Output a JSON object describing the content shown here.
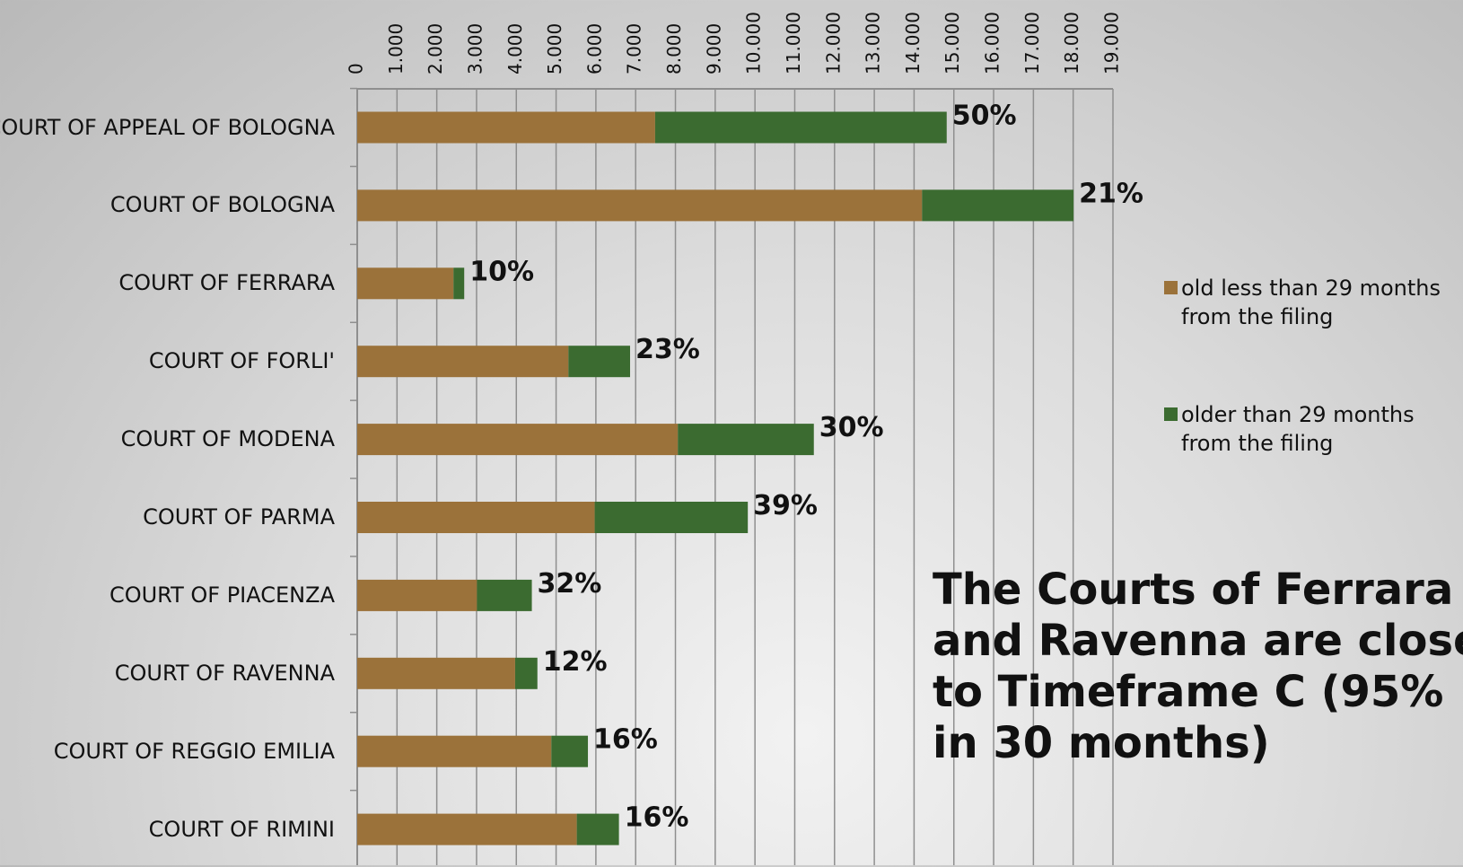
{
  "chart_data": {
    "type": "stacked-hbar",
    "categories": [
      "COURT OF APPEAL OF BOLOGNA",
      "COURT OF BOLOGNA",
      "COURT OF FERRARA",
      "COURT OF FORLI'",
      "COURT OF MODENA",
      "COURT OF PARMA",
      "COURT OF PIACENZA",
      "COURT OF RAVENNA",
      "COURT OF REGGIO EMILIA",
      "COURT OF RIMINI"
    ],
    "series": [
      {
        "name": "old less than 29 months from the filing",
        "color": "#9b723a",
        "values": [
          7490,
          14200,
          2420,
          5310,
          8060,
          5970,
          3010,
          3970,
          4880,
          5520
        ]
      },
      {
        "name": "older than 29 months from the filing",
        "color": "#3b6b30",
        "values": [
          7330,
          3810,
          270,
          1550,
          3420,
          3850,
          1380,
          560,
          920,
          1060
        ]
      }
    ],
    "bar_annotations": [
      "50%",
      "21%",
      "10%",
      "23%",
      "30%",
      "39%",
      "32%",
      "12%",
      "16%",
      "16%"
    ],
    "xlim": [
      0,
      19000
    ],
    "xticks": [
      0,
      {
        "value": 1000,
        "label": "1.000"
      },
      {
        "value": 2000,
        "label": "2.000"
      },
      {
        "value": 3000,
        "label": "3.000"
      },
      {
        "value": 4000,
        "label": "4.000"
      },
      {
        "value": 5000,
        "label": "5.000"
      },
      {
        "value": 6000,
        "label": "6.000"
      },
      {
        "value": 7000,
        "label": "7.000"
      },
      {
        "value": 8000,
        "label": "8.000"
      },
      {
        "value": 9000,
        "label": "9.000"
      },
      {
        "value": 10000,
        "label": "10.000"
      },
      {
        "value": 11000,
        "label": "11.000"
      },
      {
        "value": 12000,
        "label": "12.000"
      },
      {
        "value": 13000,
        "label": "13.000"
      },
      {
        "value": 14000,
        "label": "14.000"
      },
      {
        "value": 15000,
        "label": "15.000"
      },
      {
        "value": 16000,
        "label": "16.000"
      },
      {
        "value": 17000,
        "label": "17.000"
      },
      {
        "value": 18000,
        "label": "18.000"
      },
      {
        "value": 19000,
        "label": "19.000"
      }
    ],
    "grid": true,
    "legend": "right",
    "annotation": [
      "The Courts of Ferrara",
      "and Ravenna are closer",
      "to Timeframe C (95%",
      "in 30 months)"
    ]
  }
}
